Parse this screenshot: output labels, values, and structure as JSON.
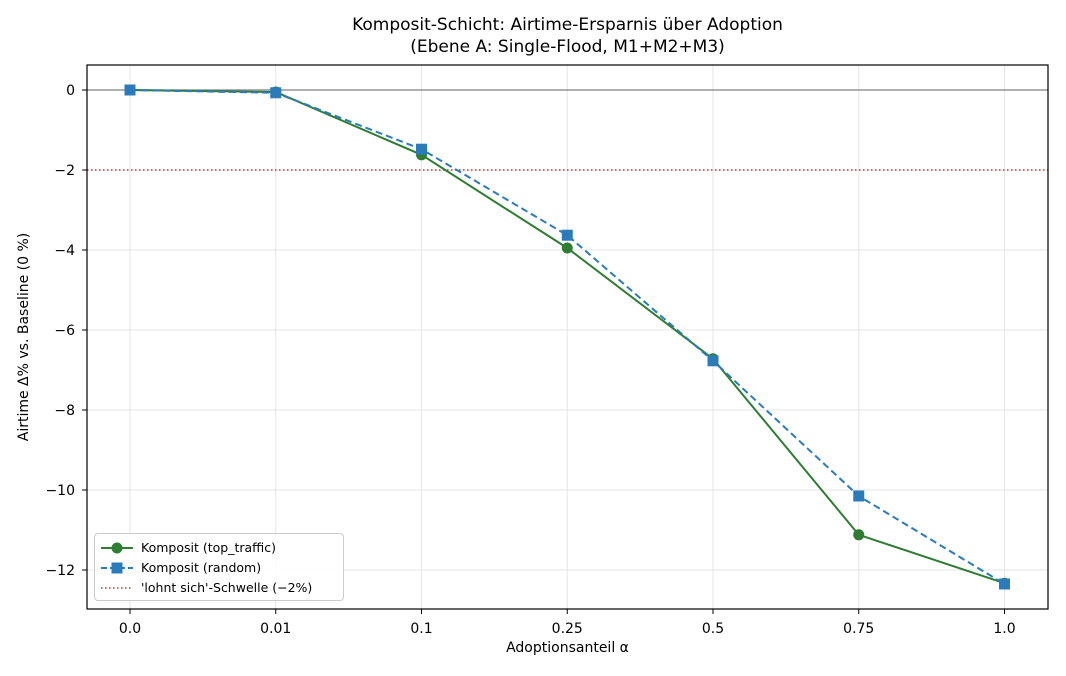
{
  "chart_data": {
    "type": "line",
    "title": "Komposit-Schicht: Airtime-Ersparnis über Adoption",
    "subtitle": "(Ebene A: Single-Flood, M1+M2+M3)",
    "xlabel": "Adoptionsanteil α",
    "ylabel": "Airtime Δ% vs. Baseline (0 %)",
    "categories": [
      "0.0",
      "0.01",
      "0.1",
      "0.25",
      "0.5",
      "0.75",
      "1.0"
    ],
    "ylim": [
      -13,
      0.6
    ],
    "yticks": [
      0,
      -2,
      -4,
      -6,
      -8,
      -10,
      -12
    ],
    "ytick_labels": [
      "0",
      "−2",
      "−4",
      "−6",
      "−8",
      "−10",
      "−12"
    ],
    "grid": true,
    "series": [
      {
        "name": "Komposit (top_traffic)",
        "color": "#2e7d32",
        "marker": "circle",
        "linestyle": "solid",
        "values": [
          0.0,
          -0.05,
          -1.62,
          -3.95,
          -6.72,
          -11.12,
          -12.33
        ]
      },
      {
        "name": "Komposit (random)",
        "color": "#2b7bba",
        "marker": "square",
        "linestyle": "dashed",
        "values": [
          0.0,
          -0.07,
          -1.48,
          -3.63,
          -6.77,
          -10.15,
          -12.35
        ]
      }
    ],
    "reference_lines": [
      {
        "y": 0,
        "color": "#808080",
        "style": "solid"
      },
      {
        "y": -2,
        "color": "#c0392b",
        "style": "dotted",
        "name": "'lohnt sich'-Schwelle (−2%)"
      }
    ],
    "legend_position": "lower-left"
  }
}
